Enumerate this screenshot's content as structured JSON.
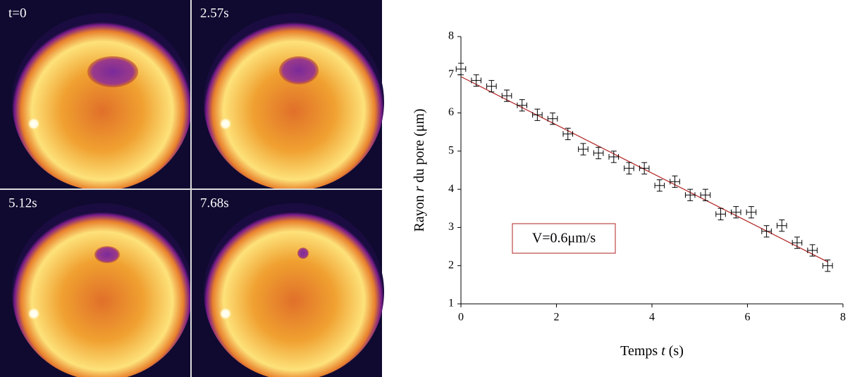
{
  "panels": [
    {
      "label": "t=0"
    },
    {
      "label": "2.57s"
    },
    {
      "label": "5.12s"
    },
    {
      "label": "7.68s"
    }
  ],
  "chart_data": {
    "type": "scatter",
    "xlabel_parts": [
      "Temps ",
      "t",
      " (s)"
    ],
    "ylabel_parts": [
      "Rayon ",
      "r",
      " du pore (μm)"
    ],
    "annotation": "V=0.6μm/s",
    "color": "#000000",
    "x": [
      0,
      0.32,
      0.64,
      0.96,
      1.28,
      1.6,
      1.92,
      2.24,
      2.56,
      2.88,
      3.2,
      3.52,
      3.84,
      4.16,
      4.48,
      4.8,
      5.12,
      5.44,
      5.76,
      6.08,
      6.4,
      6.72,
      7.04,
      7.36,
      7.68
    ],
    "values": [
      7.15,
      6.85,
      6.7,
      6.45,
      6.2,
      5.95,
      5.85,
      5.45,
      5.05,
      4.95,
      4.85,
      4.55,
      4.55,
      4.1,
      4.2,
      3.85,
      3.85,
      3.35,
      3.4,
      3.4,
      2.9,
      3.05,
      2.6,
      2.4,
      2.0
    ],
    "yerr": [
      0.15,
      0.15,
      0.15,
      0.15,
      0.15,
      0.15,
      0.15,
      0.15,
      0.15,
      0.15,
      0.15,
      0.15,
      0.15,
      0.15,
      0.15,
      0.15,
      0.15,
      0.15,
      0.15,
      0.15,
      0.15,
      0.15,
      0.15,
      0.15,
      0.15
    ],
    "xerr": [
      0.1,
      0.1,
      0.1,
      0.1,
      0.1,
      0.1,
      0.1,
      0.1,
      0.1,
      0.1,
      0.1,
      0.1,
      0.1,
      0.1,
      0.1,
      0.1,
      0.1,
      0.1,
      0.1,
      0.1,
      0.1,
      0.1,
      0.1,
      0.1,
      0.1
    ],
    "fit": {
      "x": [
        0,
        7.68
      ],
      "values": [
        6.95,
        2.1
      ],
      "color": "#b22222"
    },
    "xlim": [
      0,
      8
    ],
    "ylim": [
      1,
      8
    ],
    "xticks": [
      0,
      2,
      4,
      6,
      8
    ],
    "yticks": [
      1,
      2,
      3,
      4,
      5,
      6,
      7,
      8
    ]
  }
}
